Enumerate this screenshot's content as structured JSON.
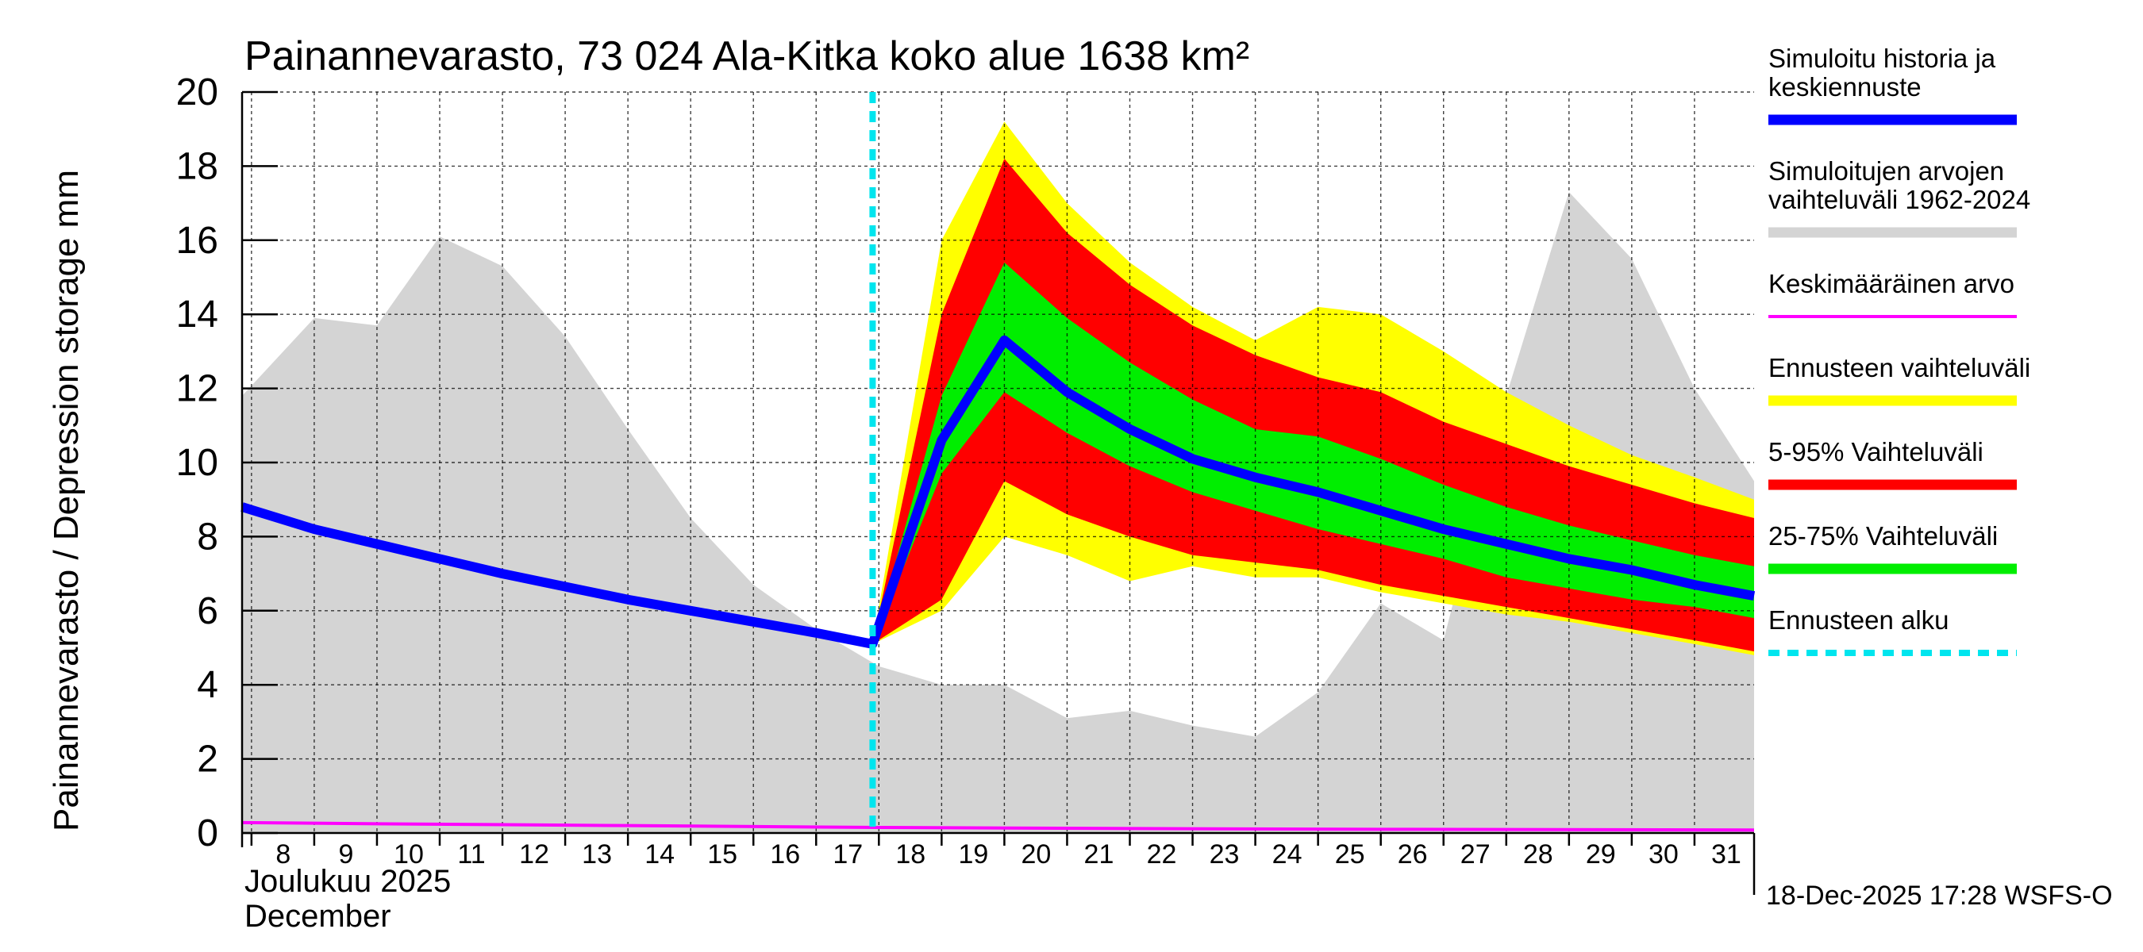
{
  "chart_data": {
    "type": "area",
    "title": "Painannevarasto, 73 024 Ala-Kitka koko alue 1638 km²",
    "ylabel": "Painannevarasto / Depression storage    mm",
    "ylim": [
      0,
      20
    ],
    "yticks": [
      "0",
      "2",
      "4",
      "6",
      "8",
      "10",
      "12",
      "14",
      "16",
      "18",
      "20"
    ],
    "xlim": [
      7.85,
      31.95
    ],
    "xticks": [
      "8",
      "9",
      "10",
      "11",
      "12",
      "13",
      "14",
      "15",
      "16",
      "17",
      "18",
      "19",
      "20",
      "21",
      "22",
      "23",
      "24",
      "25",
      "26",
      "27",
      "28",
      "29",
      "30",
      "31"
    ],
    "month_label_fi": "Joulukuu  2025",
    "month_label_en": "December",
    "forecast_start_day": 18,
    "footer": "18-Dec-2025 17:28 WSFS-O",
    "series": [
      {
        "name": "history_range",
        "legend": "Simuloitujen arvojen vaihteluväli 1962-2024",
        "color": "#d4d4d4",
        "x": [
          7.85,
          9,
          10,
          11,
          12,
          13,
          14,
          15,
          16,
          17,
          18,
          19,
          20,
          21,
          22,
          23,
          24,
          25,
          26,
          27,
          28,
          29,
          30,
          31,
          31.95
        ],
        "upper": [
          11.8,
          13.9,
          13.7,
          16.1,
          15.3,
          13.4,
          10.9,
          8.5,
          6.7,
          5.5,
          4.5,
          4.0,
          4.0,
          3.1,
          3.3,
          2.9,
          2.6,
          3.8,
          6.2,
          5.2,
          11.8,
          17.3,
          15.5,
          12.0,
          9.5
        ],
        "lower": [
          0,
          0,
          0,
          0,
          0,
          0,
          0,
          0,
          0,
          0,
          0,
          0,
          0,
          0,
          0,
          0,
          0,
          0,
          0,
          0,
          0,
          0,
          0,
          0,
          0
        ]
      },
      {
        "name": "forecast_range",
        "legend": "Ennusteen vaihteluväli",
        "color": "#ffff00",
        "x": [
          17.9,
          19,
          20,
          21,
          22,
          23,
          24,
          25,
          26,
          27,
          28,
          29,
          30,
          31,
          31.95
        ],
        "upper": [
          5.1,
          16.0,
          19.2,
          17.0,
          15.4,
          14.2,
          13.3,
          14.2,
          14.0,
          13.0,
          11.9,
          11.0,
          10.2,
          9.6,
          9.0
        ],
        "lower": [
          5.1,
          6.0,
          8.0,
          7.5,
          6.8,
          7.2,
          6.9,
          6.9,
          6.5,
          6.2,
          5.9,
          5.7,
          5.4,
          5.1,
          4.8
        ]
      },
      {
        "name": "p5_95",
        "legend": "5-95% Vaihteluväli",
        "color": "#ff0000",
        "x": [
          17.9,
          19,
          20,
          21,
          22,
          23,
          24,
          25,
          26,
          27,
          28,
          29,
          30,
          31,
          31.95
        ],
        "upper": [
          5.1,
          14.0,
          18.2,
          16.2,
          14.8,
          13.7,
          12.9,
          12.3,
          11.9,
          11.1,
          10.5,
          9.9,
          9.4,
          8.9,
          8.5
        ],
        "lower": [
          5.1,
          6.3,
          9.5,
          8.6,
          8.0,
          7.5,
          7.3,
          7.1,
          6.7,
          6.4,
          6.1,
          5.8,
          5.5,
          5.2,
          4.9
        ]
      },
      {
        "name": "p25_75",
        "legend": "25-75% Vaihteluväli",
        "color": "#00ee00",
        "x": [
          17.9,
          19,
          20,
          21,
          22,
          23,
          24,
          25,
          26,
          27,
          28,
          29,
          30,
          31,
          31.95
        ],
        "upper": [
          5.1,
          11.8,
          15.4,
          13.9,
          12.7,
          11.7,
          10.9,
          10.7,
          10.1,
          9.4,
          8.8,
          8.3,
          7.9,
          7.5,
          7.2
        ],
        "lower": [
          5.1,
          9.7,
          11.9,
          10.8,
          9.9,
          9.2,
          8.7,
          8.2,
          7.8,
          7.4,
          6.9,
          6.6,
          6.3,
          6.1,
          5.8
        ]
      },
      {
        "name": "median",
        "legend": "Simuloitu historia ja keskiennuste",
        "color": "#0000ff",
        "x": [
          7.85,
          9,
          10,
          11,
          12,
          13,
          14,
          15,
          16,
          17,
          17.9,
          19,
          20,
          21,
          22,
          23,
          24,
          25,
          26,
          27,
          28,
          29,
          30,
          31,
          31.95
        ],
        "y": [
          8.8,
          8.2,
          7.8,
          7.4,
          7.0,
          6.65,
          6.3,
          6.0,
          5.7,
          5.4,
          5.1,
          10.6,
          13.3,
          11.9,
          10.9,
          10.1,
          9.6,
          9.2,
          8.7,
          8.2,
          7.8,
          7.4,
          7.1,
          6.7,
          6.4
        ]
      },
      {
        "name": "mean",
        "legend": "Keskimääräinen arvo",
        "color": "#ff00ff",
        "x": [
          7.85,
          10,
          14,
          18,
          22,
          26,
          31.95
        ],
        "y": [
          0.28,
          0.25,
          0.2,
          0.15,
          0.12,
          0.1,
          0.08
        ]
      }
    ],
    "legend": [
      {
        "label_lines": [
          "Simuloitu historia ja",
          "keskiennuste"
        ],
        "color": "#0000ff",
        "style": "thick"
      },
      {
        "label_lines": [
          "Simuloitujen arvojen",
          "vaihteluväli 1962-2024"
        ],
        "color": "#d4d4d4",
        "style": "thick"
      },
      {
        "label_lines": [
          "Keskimääräinen arvo"
        ],
        "color": "#ff00ff",
        "style": "thin"
      },
      {
        "label_lines": [
          "Ennusteen vaihteluväli"
        ],
        "color": "#ffff00",
        "style": "thick"
      },
      {
        "label_lines": [
          "5-95% Vaihteluväli"
        ],
        "color": "#ff0000",
        "style": "thick"
      },
      {
        "label_lines": [
          "25-75% Vaihteluväli"
        ],
        "color": "#00ee00",
        "style": "thick"
      },
      {
        "label_lines": [
          "Ennusteen alku"
        ],
        "color": "#00e5ee",
        "style": "dashed"
      }
    ]
  }
}
